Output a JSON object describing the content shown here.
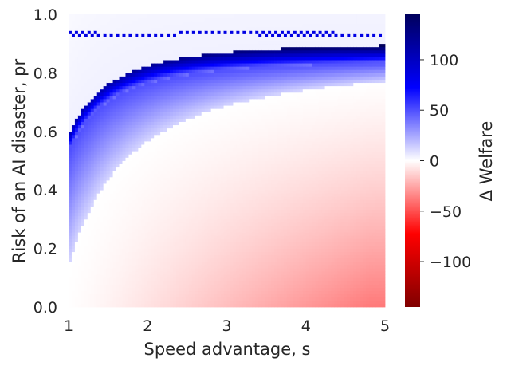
{
  "chart_data": {
    "type": "heatmap",
    "xlabel": "Speed advantage, s",
    "ylabel": "Risk of an AI disaster, pr",
    "xlim": [
      1,
      5
    ],
    "ylim": [
      0,
      1
    ],
    "x_ticks": [
      "1",
      "2",
      "3",
      "4",
      "5"
    ],
    "y_ticks": [
      "0.0",
      "0.2",
      "0.4",
      "0.6",
      "0.8",
      "1.0"
    ],
    "colorbar": {
      "label": "Δ Welfare",
      "range": [
        -145,
        145
      ],
      "ticks": [
        "100",
        "50",
        "0",
        "−50",
        "−100"
      ],
      "tick_values": [
        100,
        50,
        0,
        -50,
        -100
      ],
      "colormap": "seismic_r",
      "colors": {
        "high": "#00005c",
        "mid": "#ffffff",
        "low": "#800000"
      }
    },
    "grid": false,
    "regions": [
      {
        "region": "high welfare gain band",
        "x_range": [
          1,
          5
        ],
        "pr_at_s1": [
          0.54,
          0.59
        ],
        "pr_at_s5": [
          0.85,
          0.91
        ],
        "delta_welfare": [
          20,
          145
        ]
      },
      {
        "region": "moderate gain (just below band)",
        "x_range": [
          1,
          5
        ],
        "delta_welfare": [
          5,
          45
        ]
      },
      {
        "region": "negative welfare (lower right)",
        "x_range": [
          1,
          5
        ],
        "pr_range": [
          0,
          0.5
        ],
        "delta_welfare": [
          -45,
          0
        ]
      },
      {
        "region": "near zero (above band)",
        "pr_range": [
          0.8,
          1.0
        ],
        "delta_welfare": [
          -5,
          10
        ]
      }
    ]
  }
}
